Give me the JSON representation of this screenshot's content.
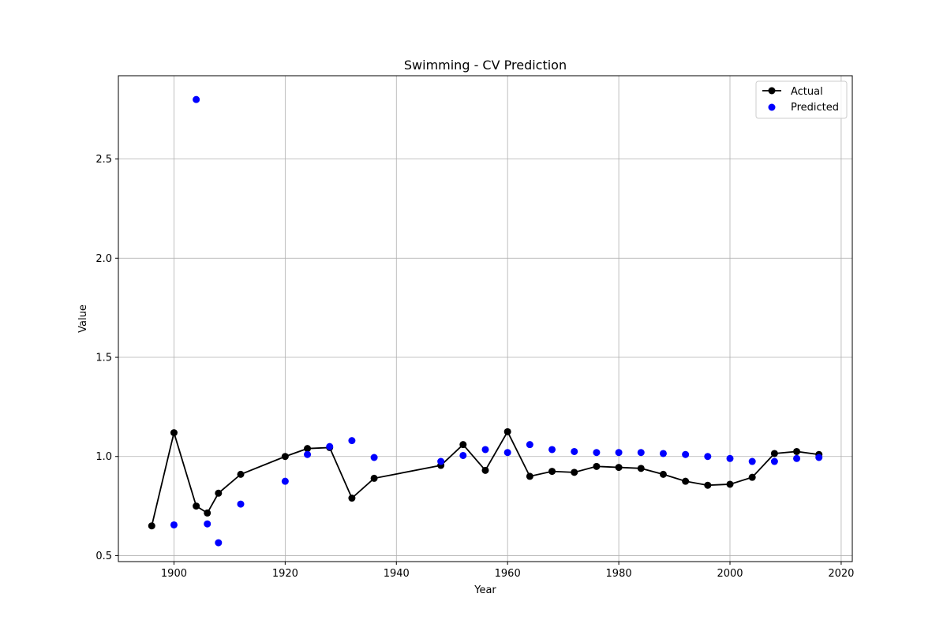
{
  "chart_data": {
    "type": "line",
    "title": "Swimming - CV Prediction",
    "xlabel": "Year",
    "ylabel": "Value",
    "xlim": [
      1890,
      2022
    ],
    "ylim": [
      0.47,
      2.92
    ],
    "xticks": [
      1900,
      1920,
      1940,
      1960,
      1980,
      2000,
      2020
    ],
    "yticks": [
      0.5,
      1.0,
      1.5,
      2.0,
      2.5
    ],
    "xtick_labels": [
      "1900",
      "1920",
      "1940",
      "1960",
      "1980",
      "2000",
      "2020"
    ],
    "ytick_labels": [
      "0.5",
      "1.0",
      "1.5",
      "2.0",
      "2.5"
    ],
    "grid": true,
    "legend_position": "top-right",
    "series": [
      {
        "name": "Actual",
        "kind": "line-marker",
        "color": "#000000",
        "x": [
          1896,
          1900,
          1904,
          1906,
          1908,
          1912,
          1920,
          1924,
          1928,
          1932,
          1936,
          1948,
          1952,
          1956,
          1960,
          1964,
          1968,
          1972,
          1976,
          1980,
          1984,
          1988,
          1992,
          1996,
          2000,
          2004,
          2008,
          2012,
          2016
        ],
        "y": [
          0.65,
          1.12,
          0.75,
          0.715,
          0.815,
          0.91,
          1.0,
          1.04,
          1.045,
          0.79,
          0.89,
          0.955,
          1.06,
          0.93,
          1.125,
          0.9,
          0.925,
          0.92,
          0.95,
          0.945,
          0.94,
          0.91,
          0.875,
          0.855,
          0.86,
          0.895,
          1.015,
          1.025,
          1.01
        ]
      },
      {
        "name": "Predicted",
        "kind": "scatter",
        "color": "#0000ff",
        "x": [
          1900,
          1904,
          1906,
          1908,
          1912,
          1920,
          1924,
          1928,
          1932,
          1936,
          1948,
          1952,
          1956,
          1960,
          1964,
          1968,
          1972,
          1976,
          1980,
          1984,
          1988,
          1992,
          1996,
          2000,
          2004,
          2008,
          2012,
          2016
        ],
        "y": [
          0.655,
          2.8,
          0.66,
          0.565,
          0.76,
          0.875,
          1.01,
          1.05,
          1.08,
          0.995,
          0.975,
          1.005,
          1.035,
          1.02,
          1.06,
          1.035,
          1.025,
          1.02,
          1.02,
          1.02,
          1.015,
          1.01,
          1.0,
          0.99,
          0.975,
          0.975,
          0.99,
          0.995
        ]
      }
    ]
  }
}
